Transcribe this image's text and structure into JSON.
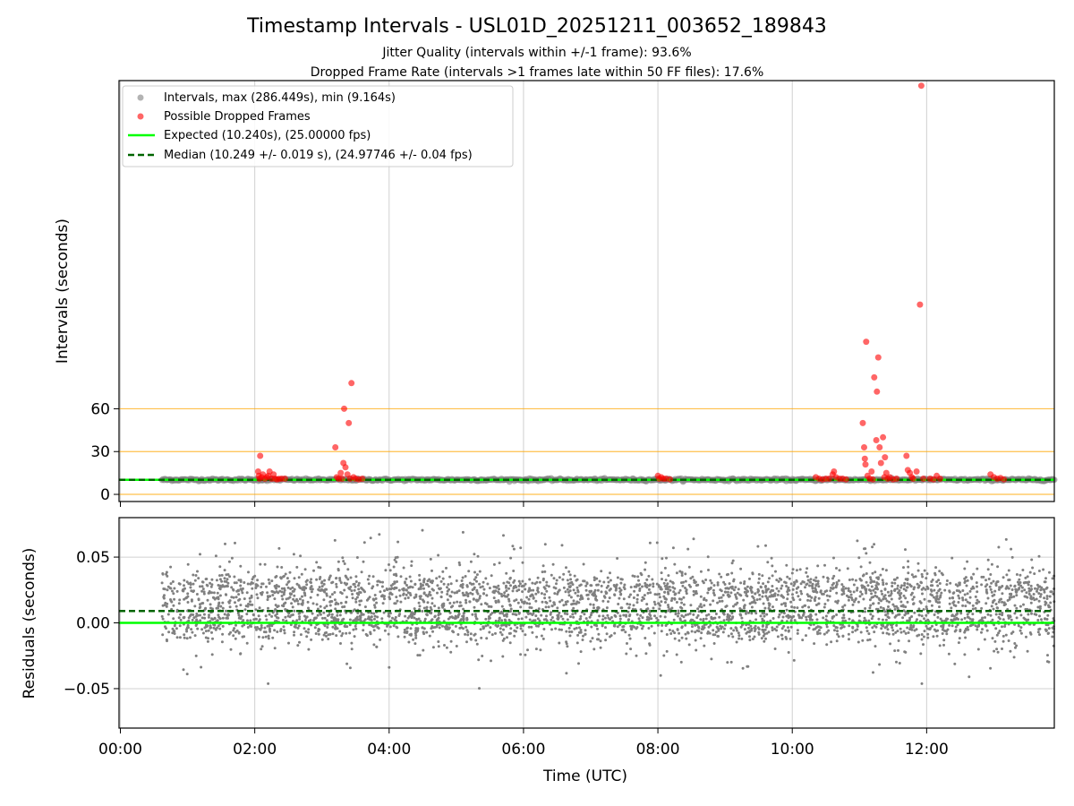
{
  "title": "Timestamp Intervals - USL01D_20251211_003652_189843",
  "subtitle1": "Jitter Quality (intervals within +/-1 frame): 93.6%",
  "subtitle2": "Dropped Frame Rate (intervals >1 frames late within 50 FF files): 17.6%",
  "colors": {
    "intervals": "#808080",
    "dropped": "#ff0000",
    "expected": "#00ff00",
    "median": "#006400",
    "threshold": "#ffa500",
    "grid": "#b0b0b0"
  },
  "chart_data": [
    {
      "type": "scatter",
      "ylabel": "Intervals (seconds)",
      "xlim_hours": [
        -0.02,
        13.9
      ],
      "ylim": [
        -5,
        290
      ],
      "x_ticks": [
        "00:00",
        "02:00",
        "04:00",
        "06:00",
        "08:00",
        "10:00",
        "12:00"
      ],
      "y_ticks": [
        "0",
        "30",
        "60"
      ],
      "y_tick_values": [
        0,
        30,
        60
      ],
      "threshold_lines": [
        0,
        30,
        60
      ],
      "legend_position": "upper-left",
      "legend": {
        "intervals": "Intervals, max (286.449s), min (9.164s)",
        "dropped": "Possible Dropped Frames",
        "expected": "Expected (10.240s), (25.00000 fps)",
        "median": "Median (10.249 +/- 0.019 s), (24.97746 +/- 0.04 fps)"
      },
      "expected_value": 10.24,
      "median_value": 10.249,
      "intervals_range_hours": [
        0.62,
        13.9
      ],
      "dropped_points": [
        [
          2.05,
          16
        ],
        [
          2.06,
          13
        ],
        [
          2.07,
          11
        ],
        [
          2.08,
          27
        ],
        [
          2.1,
          12
        ],
        [
          2.12,
          14
        ],
        [
          2.15,
          11
        ],
        [
          2.18,
          12
        ],
        [
          2.2,
          13
        ],
        [
          2.22,
          16
        ],
        [
          2.25,
          11
        ],
        [
          2.28,
          14
        ],
        [
          2.3,
          11
        ],
        [
          2.33,
          10.5
        ],
        [
          2.36,
          10.8
        ],
        [
          2.4,
          11
        ],
        [
          2.45,
          11
        ],
        [
          3.2,
          33
        ],
        [
          3.22,
          12
        ],
        [
          3.25,
          11
        ],
        [
          3.28,
          15
        ],
        [
          3.3,
          11
        ],
        [
          3.32,
          22
        ],
        [
          3.33,
          60
        ],
        [
          3.35,
          19
        ],
        [
          3.38,
          14
        ],
        [
          3.4,
          50
        ],
        [
          3.42,
          11
        ],
        [
          3.44,
          78
        ],
        [
          3.47,
          12
        ],
        [
          3.5,
          11
        ],
        [
          3.55,
          10.5
        ],
        [
          3.6,
          11
        ],
        [
          8.0,
          13
        ],
        [
          8.02,
          11
        ],
        [
          8.05,
          12
        ],
        [
          8.08,
          11
        ],
        [
          8.12,
          11
        ],
        [
          8.18,
          10.5
        ],
        [
          10.35,
          12
        ],
        [
          10.4,
          11
        ],
        [
          10.45,
          10.5
        ],
        [
          10.5,
          11
        ],
        [
          10.55,
          11
        ],
        [
          10.6,
          14
        ],
        [
          10.62,
          16
        ],
        [
          10.65,
          12
        ],
        [
          10.7,
          11
        ],
        [
          10.75,
          11
        ],
        [
          10.8,
          10.5
        ],
        [
          11.05,
          50
        ],
        [
          11.07,
          33
        ],
        [
          11.08,
          25
        ],
        [
          11.09,
          21
        ],
        [
          11.1,
          107
        ],
        [
          11.12,
          13
        ],
        [
          11.15,
          11
        ],
        [
          11.18,
          16
        ],
        [
          11.2,
          10.5
        ],
        [
          11.22,
          82
        ],
        [
          11.25,
          38
        ],
        [
          11.26,
          72
        ],
        [
          11.28,
          96
        ],
        [
          11.3,
          33
        ],
        [
          11.32,
          22
        ],
        [
          11.35,
          40
        ],
        [
          11.37,
          12
        ],
        [
          11.38,
          26
        ],
        [
          11.4,
          15
        ],
        [
          11.42,
          11
        ],
        [
          11.45,
          12
        ],
        [
          11.5,
          10.5
        ],
        [
          11.55,
          11
        ],
        [
          11.7,
          27
        ],
        [
          11.72,
          17
        ],
        [
          11.75,
          15
        ],
        [
          11.78,
          12
        ],
        [
          11.8,
          11
        ],
        [
          11.85,
          16
        ],
        [
          11.9,
          133
        ],
        [
          11.92,
          286.4
        ],
        [
          11.95,
          11
        ],
        [
          12.05,
          11
        ],
        [
          12.1,
          10.5
        ],
        [
          12.15,
          13
        ],
        [
          12.2,
          11
        ],
        [
          12.95,
          14
        ],
        [
          13.0,
          12
        ],
        [
          13.05,
          11
        ],
        [
          13.1,
          11.5
        ],
        [
          13.15,
          10.5
        ]
      ]
    },
    {
      "type": "scatter",
      "ylabel": "Residuals (seconds)",
      "xlabel": "Time (UTC)",
      "xlim_hours": [
        -0.02,
        13.9
      ],
      "ylim": [
        -0.08,
        0.08
      ],
      "x_ticks": [
        "00:00",
        "02:00",
        "04:00",
        "06:00",
        "08:00",
        "10:00",
        "12:00"
      ],
      "y_ticks": [
        "0.05",
        "0.00",
        "−0.05"
      ],
      "y_tick_values": [
        0.05,
        0.0,
        -0.05
      ],
      "expected_value": 0.0,
      "median_value": 0.009,
      "residual_spread": [
        -0.055,
        0.073
      ],
      "residual_range_hours": [
        0.62,
        13.9
      ]
    }
  ]
}
